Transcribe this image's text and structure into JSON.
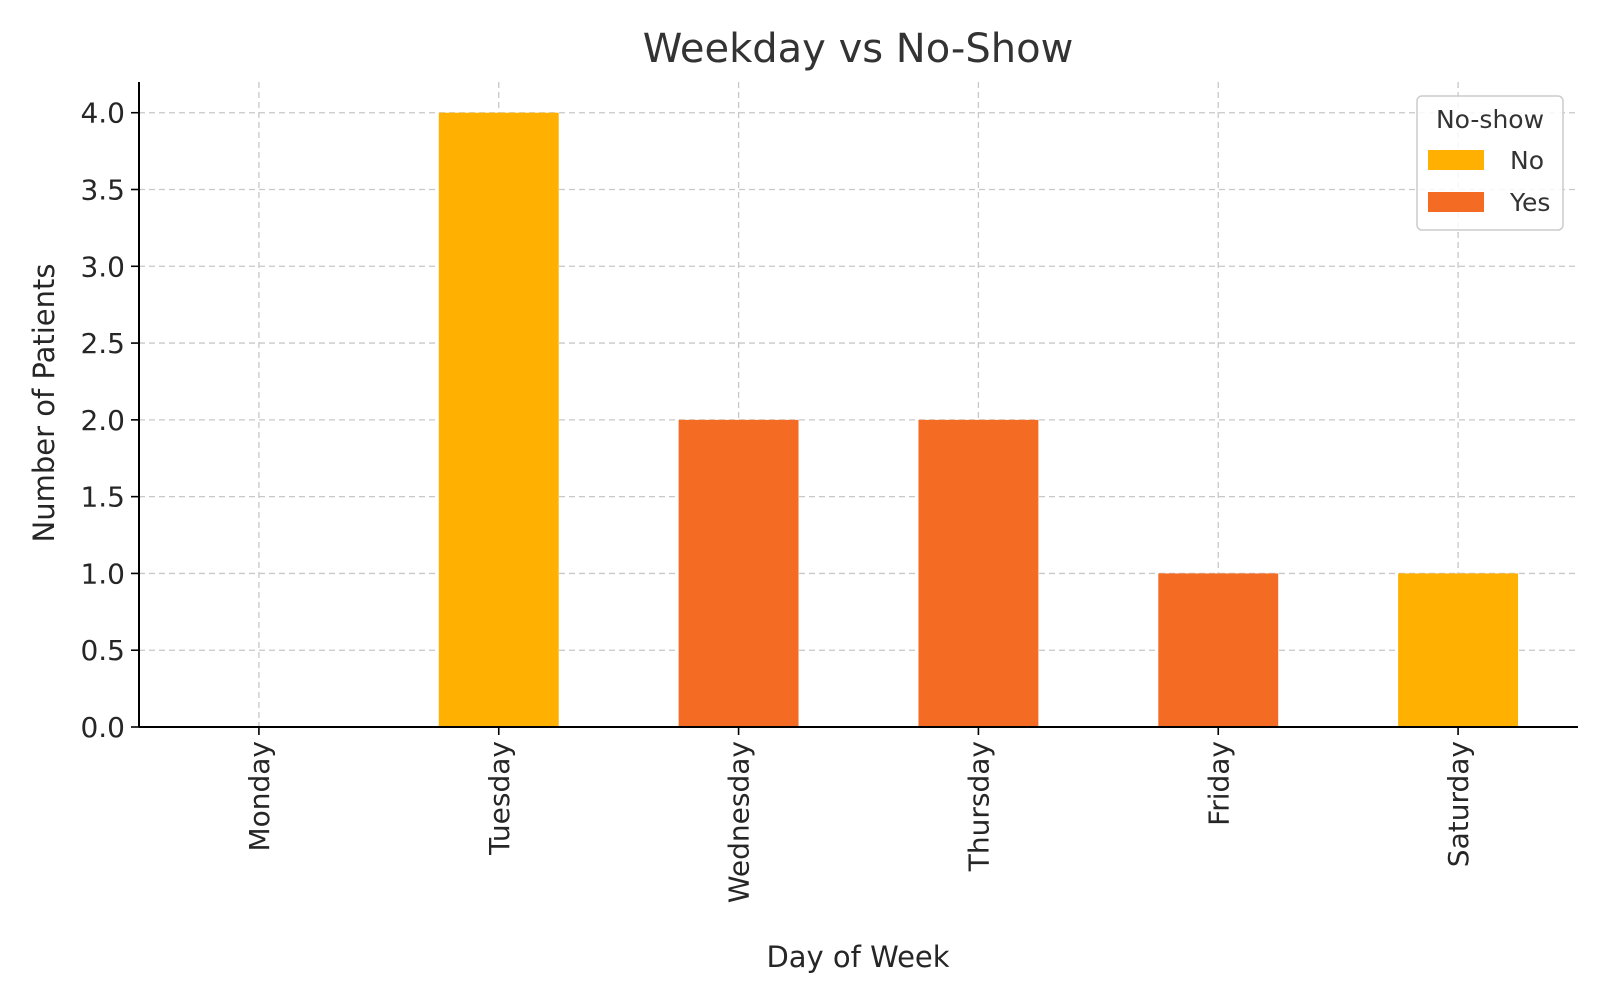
{
  "chart_data": {
    "type": "bar",
    "title": "Weekday vs No-Show",
    "xlabel": "Day of Week",
    "ylabel": "Number of Patients",
    "categories": [
      "Monday",
      "Tuesday",
      "Wednesday",
      "Thursday",
      "Friday",
      "Saturday"
    ],
    "series": [
      {
        "name": "No",
        "color": "#ffb000",
        "values": [
          0,
          4,
          0,
          0,
          0,
          1
        ]
      },
      {
        "name": "Yes",
        "color": "#f46b23",
        "values": [
          0,
          0,
          2,
          2,
          1,
          0
        ]
      }
    ],
    "ylim": [
      0,
      4.2
    ],
    "yticks": [
      "0.0",
      "0.5",
      "1.0",
      "1.5",
      "2.0",
      "2.5",
      "3.0",
      "3.5",
      "4.0"
    ],
    "grid": true,
    "legend": {
      "title": "No-show",
      "placement": "top-right"
    }
  }
}
